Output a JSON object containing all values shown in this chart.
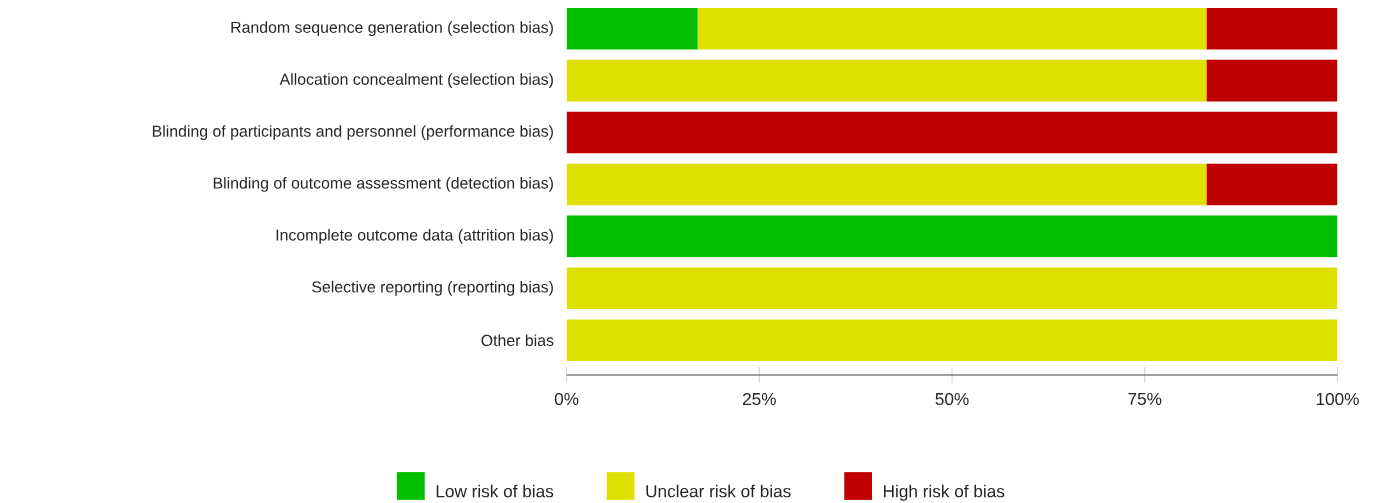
{
  "chart_data": {
    "type": "bar",
    "orientation": "horizontal",
    "stacked": true,
    "categories": [
      "Random sequence generation (selection bias)",
      "Allocation concealment (selection bias)",
      "Blinding of participants and personnel (performance bias)",
      "Blinding of outcome assessment (detection bias)",
      "Incomplete outcome data (attrition bias)",
      "Selective reporting (reporting bias)",
      "Other bias"
    ],
    "series": [
      {
        "name": "Low risk of bias",
        "color": "#00c000",
        "values": [
          17,
          0,
          0,
          0,
          100,
          0,
          0
        ]
      },
      {
        "name": "Unclear risk of bias",
        "color": "#e0e000",
        "values": [
          66,
          83,
          0,
          83,
          0,
          100,
          100
        ]
      },
      {
        "name": "High risk of bias",
        "color": "#c00000",
        "values": [
          17,
          17,
          100,
          17,
          0,
          0,
          0
        ]
      }
    ],
    "xlim": [
      0,
      100
    ],
    "xticks": [
      {
        "value": 0,
        "label": "0%"
      },
      {
        "value": 25,
        "label": "25%"
      },
      {
        "value": 50,
        "label": "50%"
      },
      {
        "value": 75,
        "label": "75%"
      },
      {
        "value": 100,
        "label": "100%"
      }
    ],
    "legend": "bottom"
  }
}
